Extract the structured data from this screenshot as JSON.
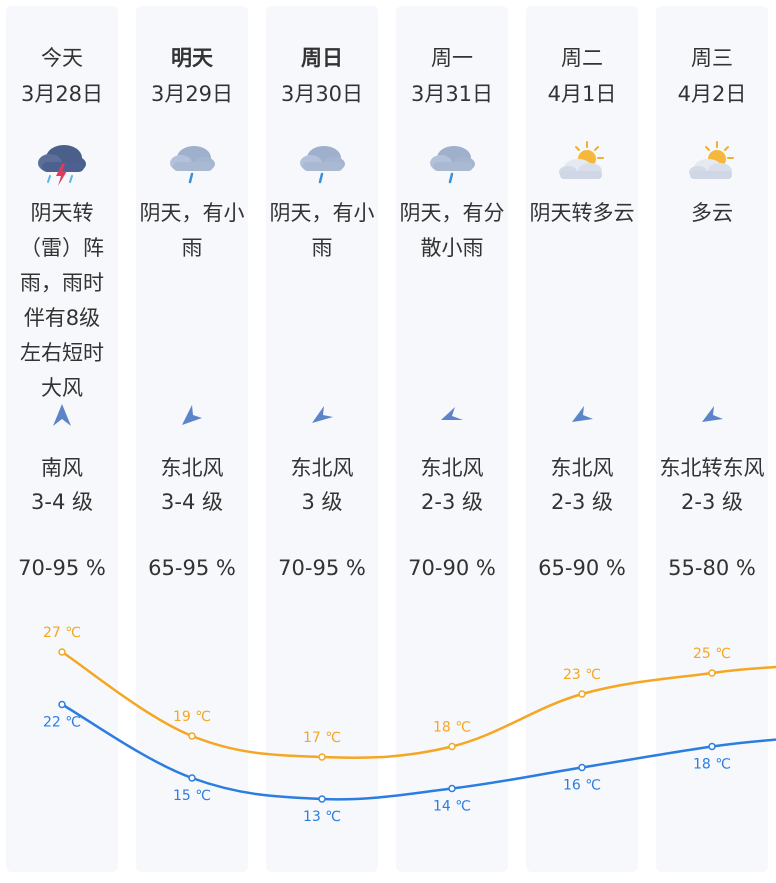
{
  "days": [
    {
      "day": "今天",
      "date": "3月28日",
      "icon": "thunderstorm-icon",
      "desc": "阴天转（雷）阵雨，雨时伴有8级左右短时大风",
      "wind_dir": "南风",
      "wind_level": "3-4 级",
      "humidity": "70-95 %",
      "high": "27 ℃",
      "low": "22 ℃",
      "bold": false
    },
    {
      "day": "明天",
      "date": "3月29日",
      "icon": "light-rain-icon",
      "desc": "阴天，有小雨",
      "wind_dir": "东北风",
      "wind_level": "3-4 级",
      "humidity": "65-95 %",
      "high": "19 ℃",
      "low": "15 ℃",
      "bold": true
    },
    {
      "day": "周日",
      "date": "3月30日",
      "icon": "light-rain-icon",
      "desc": "阴天，有小雨",
      "wind_dir": "东北风",
      "wind_level": "3 级",
      "humidity": "70-95 %",
      "high": "17 ℃",
      "low": "13 ℃",
      "bold": true
    },
    {
      "day": "周一",
      "date": "3月31日",
      "icon": "light-rain-icon",
      "desc": "阴天，有分散小雨",
      "wind_dir": "东北风",
      "wind_level": "2-3 级",
      "humidity": "70-90 %",
      "high": "18 ℃",
      "low": "14 ℃",
      "bold": false
    },
    {
      "day": "周二",
      "date": "4月1日",
      "icon": "partly-cloudy-icon",
      "desc": "阴天转多云",
      "wind_dir": "东北风",
      "wind_level": "2-3 级",
      "humidity": "65-90 %",
      "high": "23 ℃",
      "low": "16 ℃",
      "bold": false
    },
    {
      "day": "周三",
      "date": "4月2日",
      "icon": "partly-cloudy-icon",
      "desc": "多云",
      "wind_dir": "东北转东风",
      "wind_level": "2-3 级",
      "humidity": "55-80 %",
      "high": "25 ℃",
      "low": "18 ℃",
      "bold": false
    }
  ],
  "chart_data": {
    "type": "line",
    "categories": [
      "3月28日",
      "3月29日",
      "3月30日",
      "3月31日",
      "4月1日",
      "4月2日"
    ],
    "series": [
      {
        "values": [
          27,
          19,
          17,
          18,
          23,
          25
        ],
        "color": "#f5a623"
      },
      {
        "values": [
          22,
          15,
          13,
          14,
          16,
          18
        ],
        "color": "#2b7de0"
      }
    ],
    "unit": "℃"
  },
  "colors": {
    "high": "#f5a623",
    "low": "#2b7de0",
    "column_bg": "#f6f8fc"
  }
}
